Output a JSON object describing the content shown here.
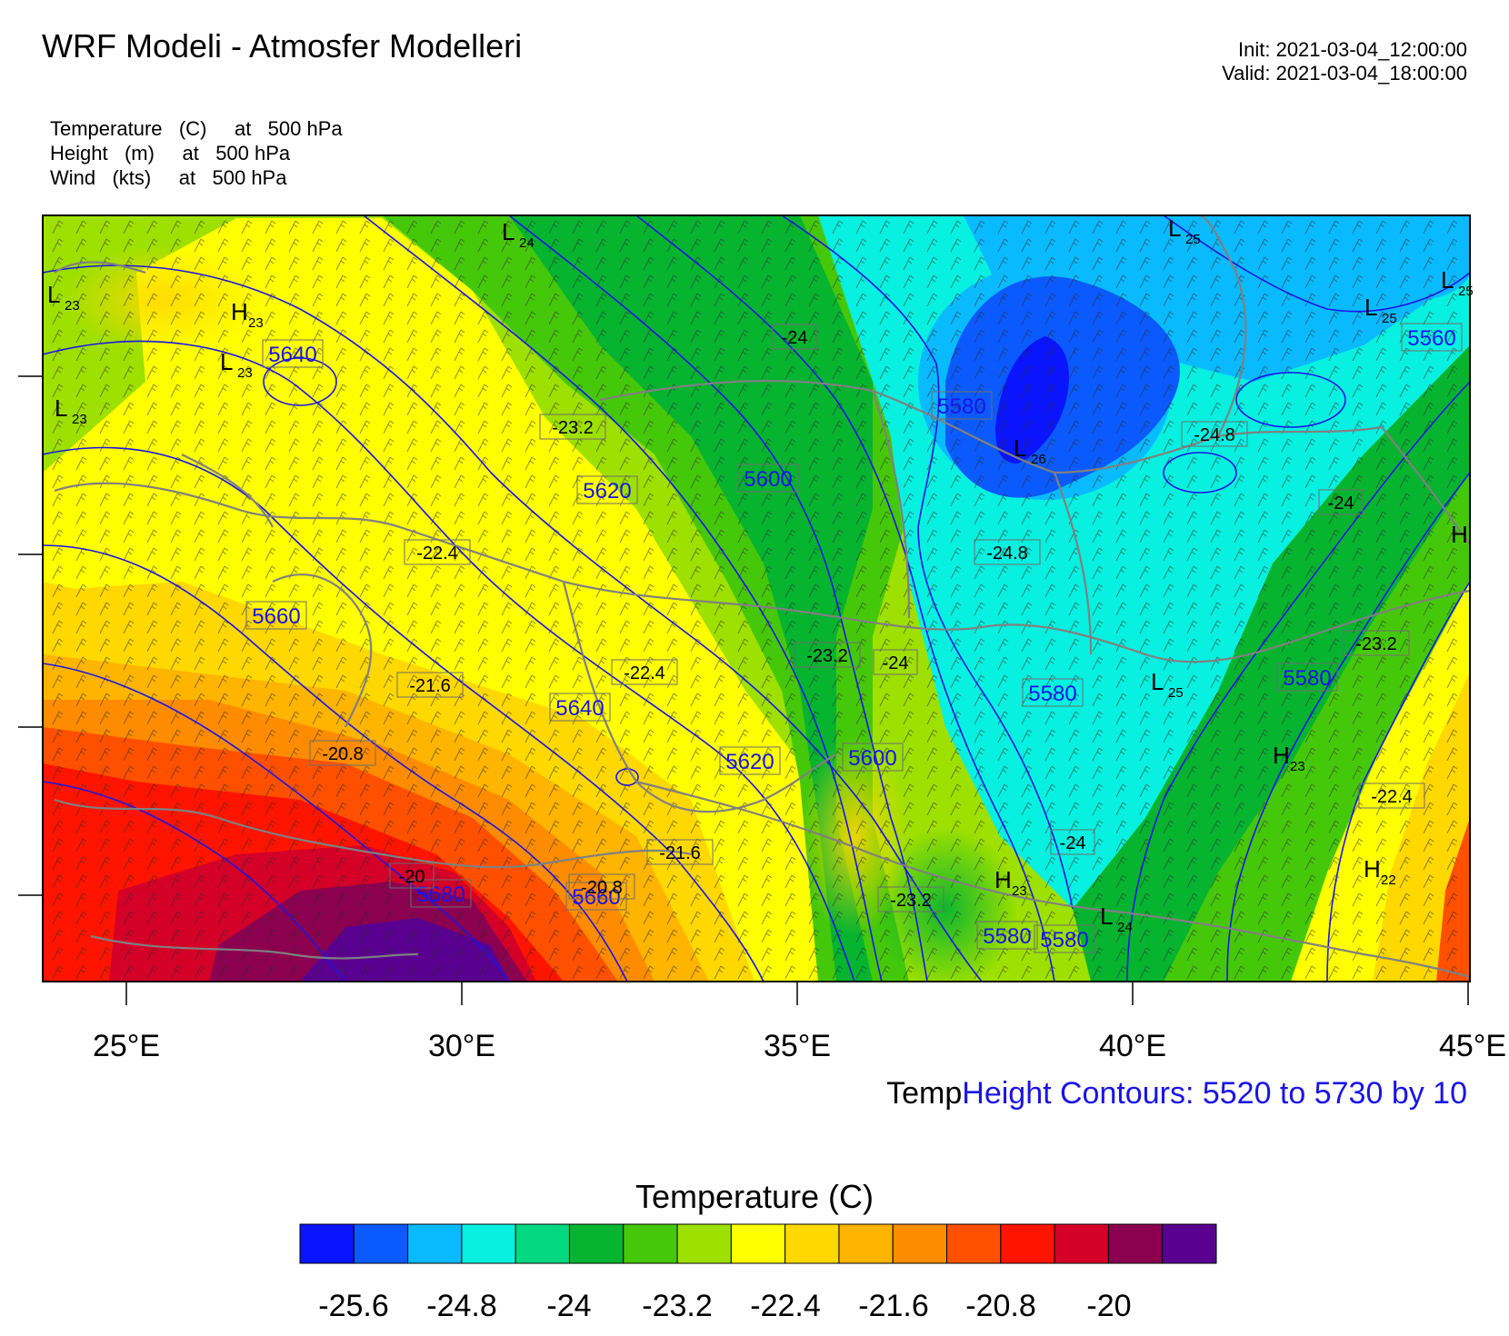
{
  "header": {
    "title": "WRF Modeli - Atmosfer Modelleri",
    "init": "Init: 2021-03-04_12:00:00",
    "valid": "Valid: 2021-03-04_18:00:00"
  },
  "fields": [
    {
      "name": "Temperature",
      "unit": "(C)",
      "at": "at",
      "level": "500 hPa"
    },
    {
      "name": "Height",
      "unit": "(m)",
      "at": "at",
      "level": "500 hPa"
    },
    {
      "name": "Wind",
      "unit": "(kts)",
      "at": "at",
      "level": "500 hPa"
    }
  ],
  "map": {
    "longitude_labels": [
      "25°E",
      "30°E",
      "35°E",
      "40°E",
      "45°E"
    ],
    "legend_temp": "Temp",
    "legend_height": "Height Contours: 5520 to 5730 by 10",
    "height_labels": [
      "5640",
      "5620",
      "5600",
      "5580",
      "5560",
      "5580",
      "5660",
      "5640",
      "5620",
      "5600",
      "5580",
      "5580",
      "5680",
      "5660",
      "5580"
    ],
    "temp_labels": [
      "-24",
      "-23.2",
      "-24.8",
      "-24",
      "-22.4",
      "-24.8",
      "-23.2",
      "-24",
      "-22.4",
      "-21.6",
      "-23.2",
      "-20.8",
      "-22.4",
      "-21.6",
      "-24",
      "-20",
      "-20.8",
      "-23.2"
    ],
    "pressure_centers": [
      {
        "letter": "L",
        "sub": "24"
      },
      {
        "letter": "L",
        "sub": "25"
      },
      {
        "letter": "L",
        "sub": "25"
      },
      {
        "letter": "L",
        "sub": "25"
      },
      {
        "letter": "L",
        "sub": "23"
      },
      {
        "letter": "H",
        "sub": "23"
      },
      {
        "letter": "L",
        "sub": "23"
      },
      {
        "letter": "L",
        "sub": "23"
      },
      {
        "letter": "L",
        "sub": "26"
      },
      {
        "letter": "H",
        "sub": ""
      },
      {
        "letter": "L",
        "sub": "25"
      },
      {
        "letter": "H",
        "sub": "23"
      },
      {
        "letter": "H",
        "sub": "23"
      },
      {
        "letter": "L",
        "sub": "24"
      },
      {
        "letter": "H",
        "sub": "22"
      }
    ],
    "colors": {
      "height_contour": "#1a14e6",
      "coastline": "#808080"
    }
  },
  "colorbar": {
    "title": "Temperature  (C)",
    "colors": [
      "#0a14ff",
      "#0a5aff",
      "#0abaff",
      "#08f0e0",
      "#04d880",
      "#06b430",
      "#46c80a",
      "#9ee000",
      "#ffff00",
      "#ffd800",
      "#ffb400",
      "#ff8c00",
      "#ff5000",
      "#ff1400",
      "#d40028",
      "#8c0050",
      "#5a0090"
    ],
    "labels": [
      "-25.6",
      "-24.8",
      "-24",
      "-23.2",
      "-22.4",
      "-21.6",
      "-20.8",
      "-20"
    ]
  }
}
